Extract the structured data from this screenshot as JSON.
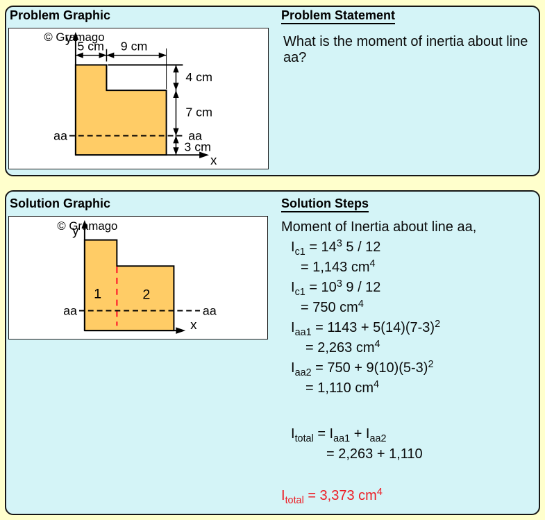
{
  "colors": {
    "page_bg": "#ffffcc",
    "panel_bg": "#d4f4f7",
    "panel_border": "#161616",
    "diagram_bg": "#ffffff",
    "shape_fill": "#ffcc66",
    "watermark_gray": "#c6c6c6",
    "red_accent": "#ed1c24",
    "red_divider": "#ff3333"
  },
  "problem_panel": {
    "graphic_title": "Problem Graphic",
    "statement_title": "Problem Statement",
    "statement_text": "What is the moment of inertia about line aa?",
    "diagram": {
      "watermark": "© Gramago",
      "y_axis_label": "y",
      "x_axis_label": "x",
      "dim_left_width": "5 cm",
      "dim_right_width": "9 cm",
      "dim_upper_height": "4 cm",
      "dim_middle_height": "7 cm",
      "dim_lower_height": "3 cm",
      "line_label_left": "aa",
      "line_label_right": "aa"
    }
  },
  "solution_panel": {
    "graphic_title": "Solution Graphic",
    "steps_title": "Solution Steps",
    "diagram": {
      "watermark": "© Gramago",
      "y_axis_label": "y",
      "x_axis_label": "x",
      "region_1_label": "1",
      "region_2_label": "2",
      "line_label_left": "aa",
      "line_label_right": "aa"
    },
    "steps": [
      {
        "text": "Moment of Inertia about line aa,"
      },
      {
        "text": "I_{c1} = 14^{3} 5 / 12"
      },
      {
        "text": "= 1,143 cm^{4}"
      },
      {
        "text": "I_{c1} = 10^{3} 9 / 12"
      },
      {
        "text": "= 750 cm^{4}"
      },
      {
        "text": "I_{aa1} = 1143 + 5(14)(7-3)^{2}"
      },
      {
        "text": "= 2,263 cm^{4}"
      },
      {
        "text": "I_{aa2} = 750 + 9(10)(5-3)^{2}"
      },
      {
        "text": "= 1,110 cm^{4}"
      },
      {
        "text": "I_{total} = I_{aa1} + I_{aa2}"
      },
      {
        "text": "= 2,263 + 1,110"
      },
      {
        "text": "I_{total} = 3,373 cm^{4}",
        "color": "#ed1c24"
      }
    ]
  }
}
